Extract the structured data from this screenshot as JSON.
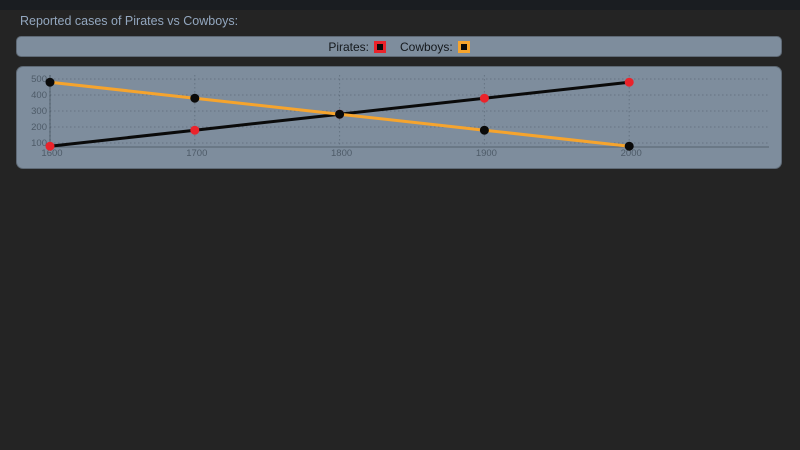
{
  "page": {
    "title": "Reported cases of Pirates vs Cowboys:"
  },
  "legend": {
    "items": [
      {
        "label": "Pirates:",
        "color": "#ea232b"
      },
      {
        "label": "Cowboys:",
        "color": "#f6a42d"
      }
    ]
  },
  "chart_data": {
    "type": "line",
    "title": "Reported cases of Pirates vs Cowboys:",
    "categories": [
      "1600",
      "1700",
      "1800",
      "1900",
      "2000"
    ],
    "series": [
      {
        "name": "Pirates",
        "values": [
          80,
          180,
          280,
          380,
          480
        ],
        "line_color": "#0a0a0a",
        "point_color": "#ea232b"
      },
      {
        "name": "Cowboys",
        "values": [
          480,
          380,
          280,
          180,
          80
        ],
        "line_color": "#f6a42d",
        "point_color": "#0a0a0a"
      }
    ],
    "y_ticks": [
      100,
      200,
      300,
      400,
      500
    ],
    "ylim": [
      75,
      525
    ],
    "grid": true,
    "legend_position": "top",
    "xlabel": "",
    "ylabel": ""
  },
  "colors": {
    "page_bg": "#242424",
    "panel_bg": "#7e8d9d",
    "title_text": "#93a7bf",
    "tick_text": "#4e5b68",
    "gridline": "rgba(15,25,35,0.22)",
    "axis_line": "rgba(10,20,30,0.35)"
  }
}
